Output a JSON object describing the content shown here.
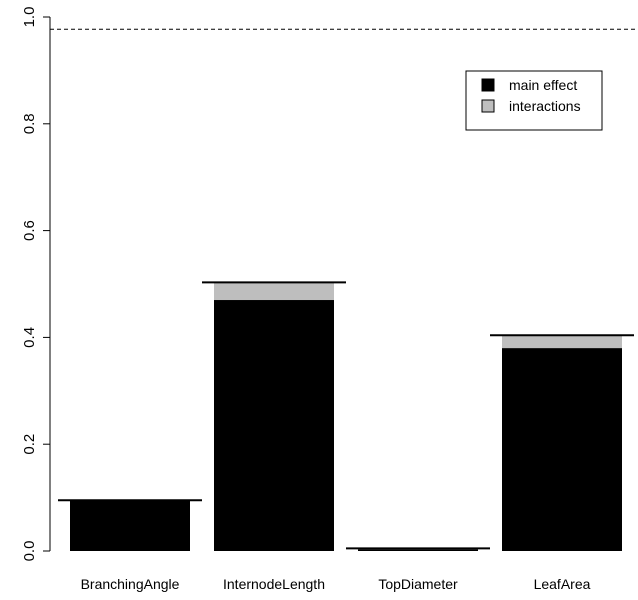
{
  "chart_data": {
    "type": "bar",
    "stacked": true,
    "categories": [
      "BranchingAngle",
      "InternodeLength",
      "TopDiameter",
      "LeafArea"
    ],
    "series": [
      {
        "name": "main effect",
        "values": [
          0.095,
          0.47,
          0.003,
          0.38
        ],
        "color": "#000000"
      },
      {
        "name": "interactions",
        "values": [
          0.0,
          0.033,
          0.002,
          0.024
        ],
        "color": "#bebebe"
      }
    ],
    "totals": [
      0.095,
      0.503,
      0.005,
      0.404
    ],
    "reference_line": {
      "value": 0.977,
      "style": "dashed"
    },
    "ylim": [
      0,
      1.0
    ],
    "yticks": [
      "0.0",
      "0.2",
      "0.4",
      "0.6",
      "0.8",
      "1.0"
    ],
    "title": "",
    "xlabel": "",
    "ylabel": "",
    "legend": {
      "position": "top-right",
      "entries": [
        "main effect",
        "interactions"
      ]
    },
    "grid": false
  }
}
